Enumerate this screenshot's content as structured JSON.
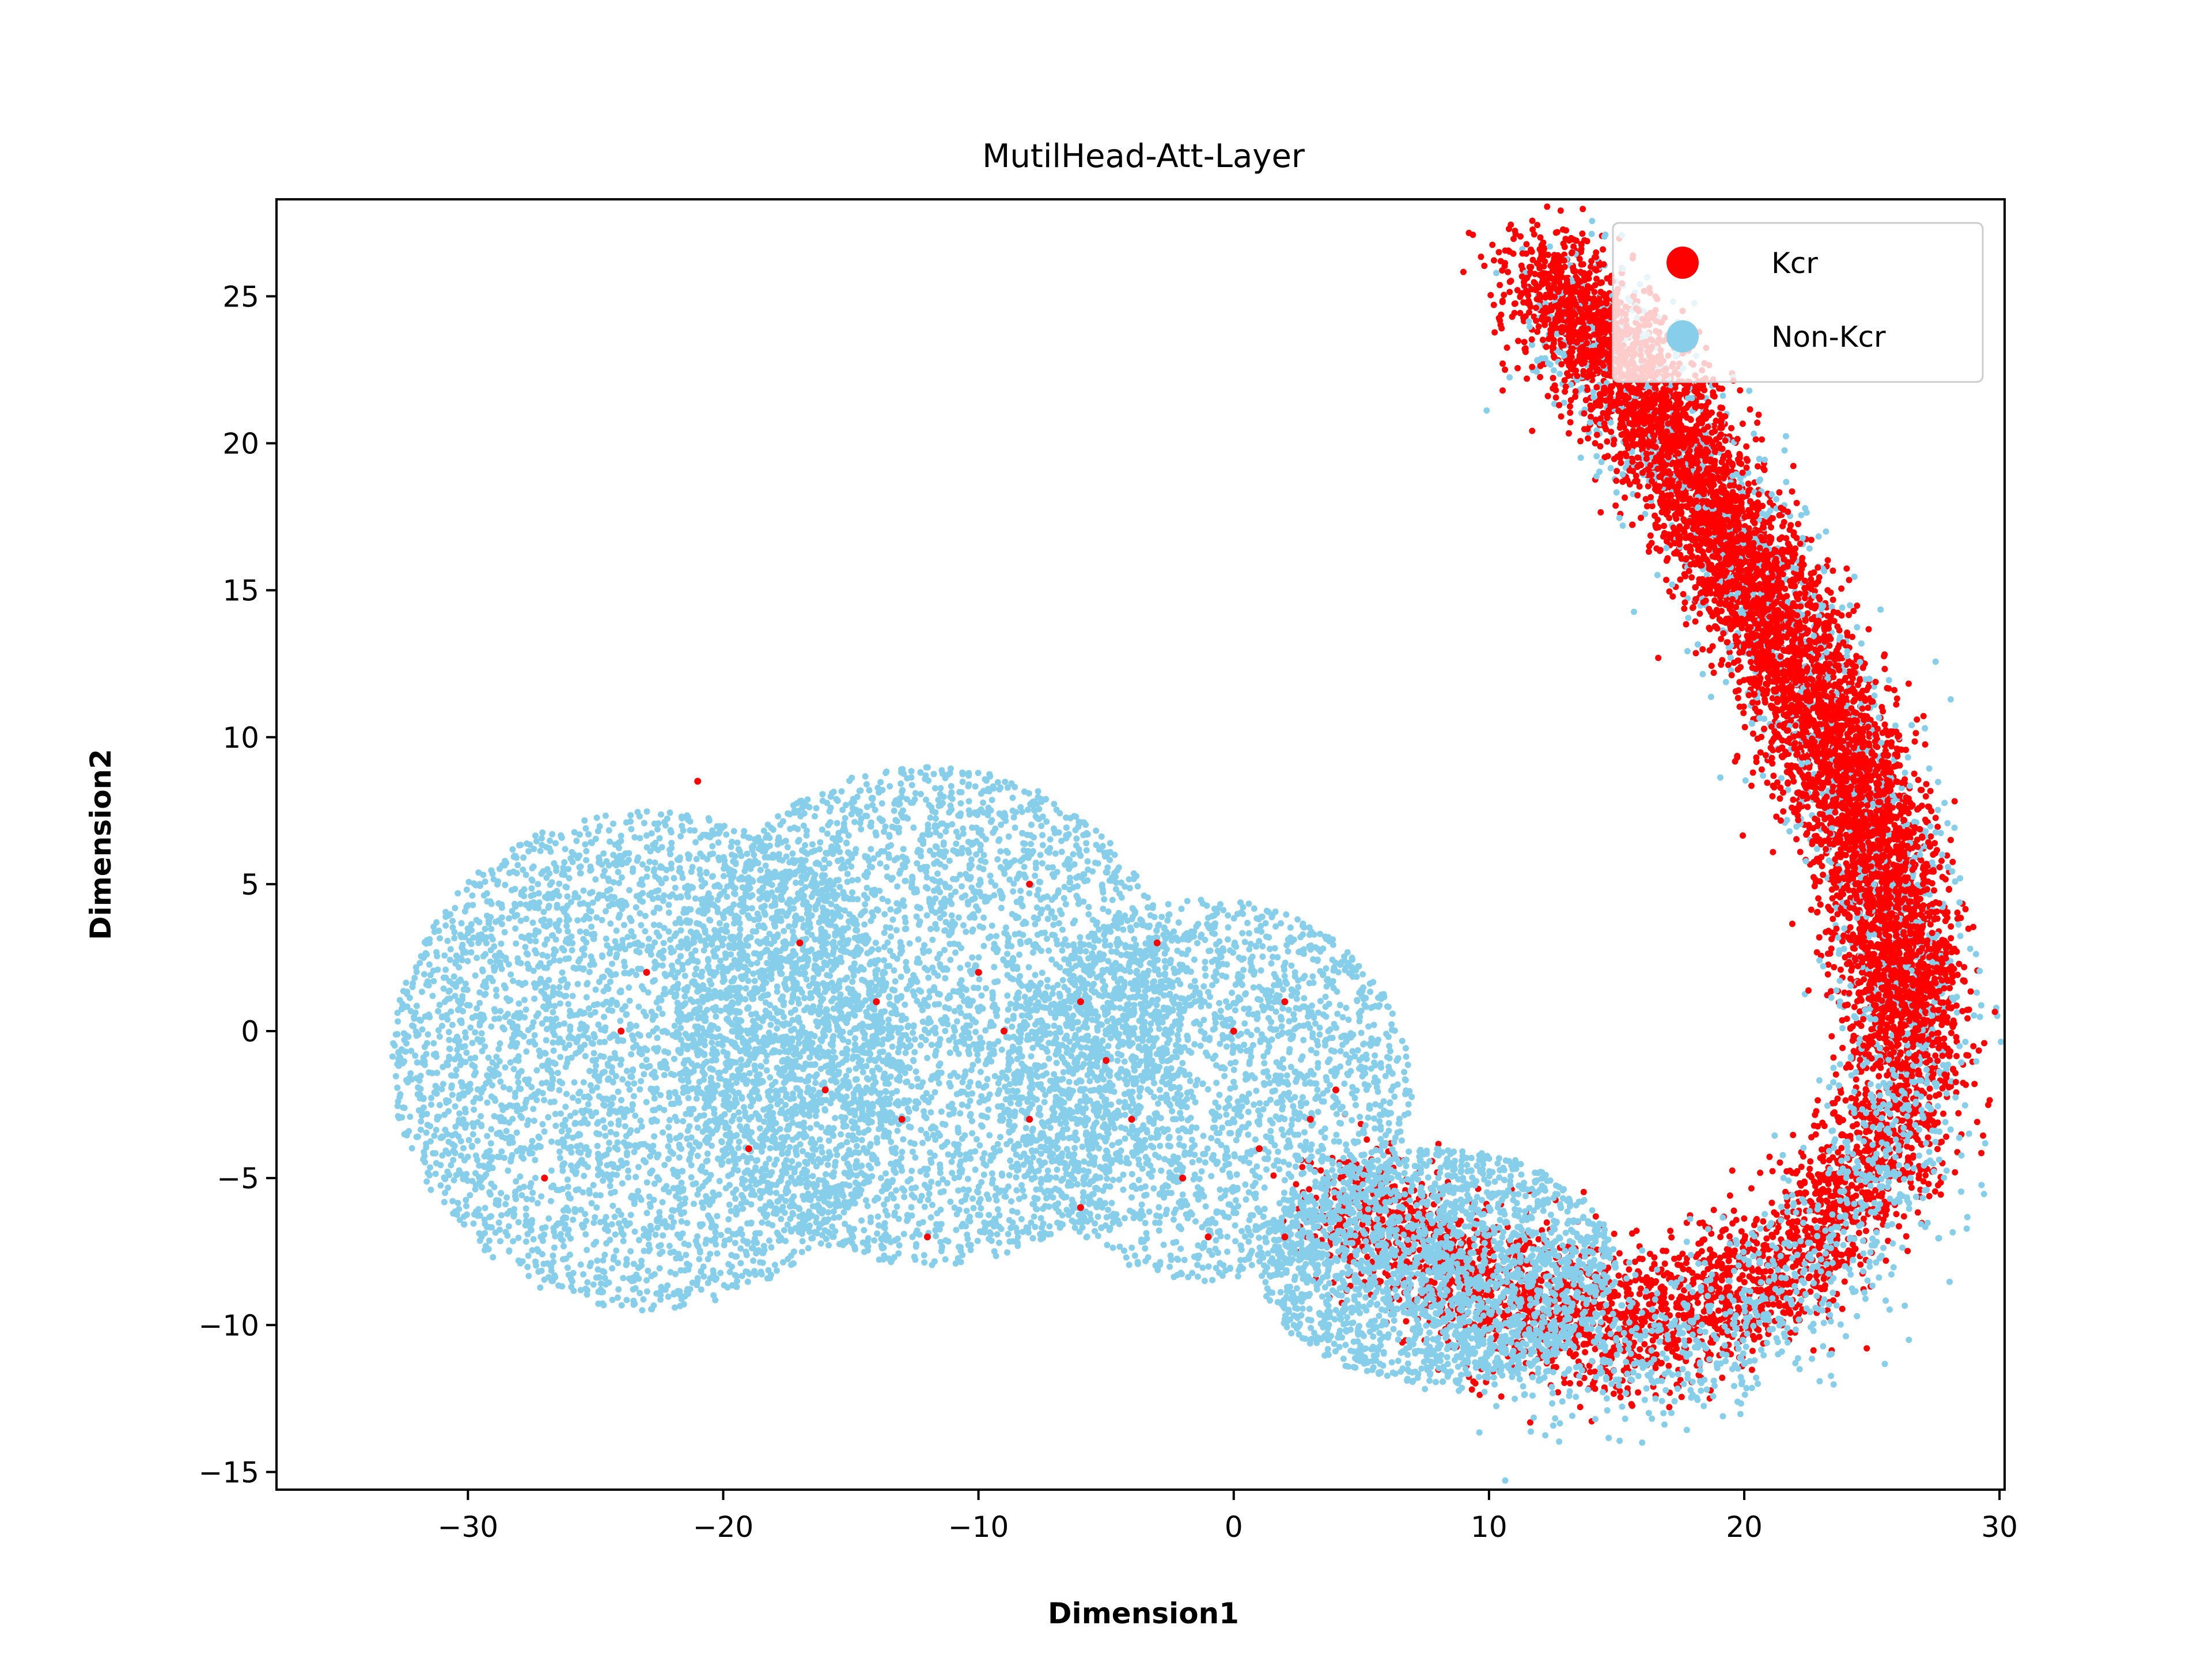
{
  "chart_data": {
    "type": "scatter",
    "title": "MutilHead-Att-Layer",
    "xlabel": "Dimension1",
    "ylabel": "Dimension2",
    "xlim": [
      -37.5,
      30.2
    ],
    "ylim": [
      -15.6,
      28.3
    ],
    "xticks": [
      -30,
      -20,
      -10,
      0,
      10,
      20,
      30
    ],
    "xtick_labels": [
      "−30",
      "−20",
      "−10",
      "0",
      "10",
      "20",
      "30"
    ],
    "yticks": [
      -15,
      -10,
      -5,
      0,
      5,
      10,
      15,
      20,
      25
    ],
    "ytick_labels": [
      "−15",
      "−10",
      "−5",
      "0",
      "5",
      "10",
      "15",
      "20",
      "25"
    ],
    "grid": false,
    "legend_position": "top-right",
    "series": [
      {
        "name": "Kcr",
        "color": "#ff0000",
        "regions": [
          {
            "shape": "curve",
            "path": [
              [
                12,
                25.5
              ],
              [
                15,
                23
              ],
              [
                18,
                19
              ],
              [
                21,
                14
              ],
              [
                23.5,
                10
              ],
              [
                25.5,
                5
              ],
              [
                26.5,
                0
              ],
              [
                25.5,
                -4
              ],
              [
                22,
                -8
              ],
              [
                16,
                -10
              ],
              [
                10,
                -9
              ],
              [
                4,
                -5.5
              ]
            ],
            "spread": 2.0,
            "weight": 8
          }
        ],
        "scatter_points": [
          [
            -21,
            8.5
          ],
          [
            -24,
            0
          ],
          [
            -16,
            -2
          ],
          [
            -14,
            1
          ],
          [
            -12,
            -7
          ],
          [
            -10,
            2
          ],
          [
            -8,
            -3
          ],
          [
            -6,
            -6
          ],
          [
            -5,
            -1
          ],
          [
            -3,
            3
          ],
          [
            -2,
            -5
          ],
          [
            0,
            0
          ],
          [
            1,
            -4
          ],
          [
            2,
            1
          ],
          [
            -19,
            -4
          ],
          [
            -27,
            -5
          ],
          [
            -8,
            5
          ],
          [
            -4,
            -3
          ],
          [
            3,
            -3
          ],
          [
            -13,
            -3
          ],
          [
            -9,
            0
          ],
          [
            -1,
            -7
          ],
          [
            2,
            -7
          ],
          [
            4,
            -2
          ],
          [
            -17,
            3
          ],
          [
            -23,
            2
          ],
          [
            -6,
            1
          ]
        ]
      },
      {
        "name": "Non-Kcr",
        "color": "#87ceeb",
        "regions": [
          {
            "shape": "blob",
            "center": [
              -23,
              -1
            ],
            "radius": [
              10,
              8.5
            ],
            "weight": 10
          },
          {
            "shape": "blob",
            "center": [
              -12,
              0.5
            ],
            "radius": [
              10,
              8.5
            ],
            "weight": 10
          },
          {
            "shape": "blob",
            "center": [
              -1,
              -2
            ],
            "radius": [
              8,
              6.5
            ],
            "weight": 6
          },
          {
            "shape": "blob",
            "center": [
              8,
              -8
            ],
            "radius": [
              7,
              4
            ],
            "weight": 5
          },
          {
            "shape": "curve",
            "path": [
              [
                13,
                25
              ],
              [
                15.5,
                22
              ],
              [
                19,
                18
              ],
              [
                21.5,
                13.5
              ],
              [
                24,
                9
              ],
              [
                26,
                4
              ],
              [
                26.5,
                -1
              ],
              [
                25.5,
                -5
              ],
              [
                22.5,
                -8.5
              ],
              [
                17,
                -11
              ],
              [
                11,
                -10.5
              ],
              [
                6,
                -8
              ]
            ],
            "spread": 2.3,
            "weight": 7
          }
        ]
      }
    ]
  }
}
